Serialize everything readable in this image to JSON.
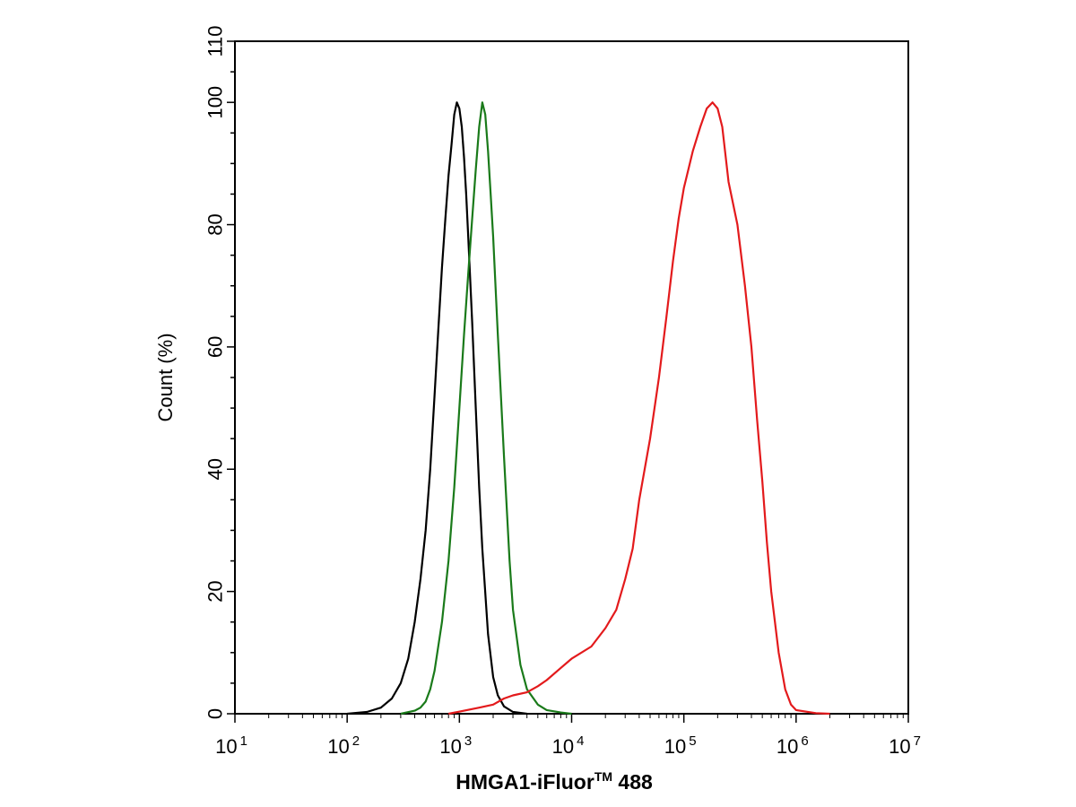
{
  "chart_data": {
    "type": "line",
    "xlabel": "HMGA1-iFluor",
    "xlabel_superscript": "TM",
    "xlabel_suffix": " 488",
    "ylabel": "Count  (%)",
    "x_scale": "log",
    "xlim": [
      10,
      10000000
    ],
    "ylim": [
      0,
      110
    ],
    "x_ticks": [
      {
        "base": "10",
        "exp": "1"
      },
      {
        "base": "10",
        "exp": "2"
      },
      {
        "base": "10",
        "exp": "3"
      },
      {
        "base": "10",
        "exp": "4"
      },
      {
        "base": "10",
        "exp": "5"
      },
      {
        "base": "10",
        "exp": "6"
      },
      {
        "base": "10",
        "exp": "7"
      }
    ],
    "y_ticks": [
      "0",
      "20",
      "40",
      "60",
      "80",
      "100",
      "110"
    ],
    "y_tick_values": [
      0,
      20,
      40,
      60,
      80,
      100,
      110
    ],
    "grid": false,
    "series": [
      {
        "color": "#000000",
        "points": [
          [
            100,
            0
          ],
          [
            150,
            0.3
          ],
          [
            200,
            1
          ],
          [
            250,
            2.5
          ],
          [
            300,
            5
          ],
          [
            350,
            9
          ],
          [
            400,
            15
          ],
          [
            450,
            22
          ],
          [
            500,
            30
          ],
          [
            550,
            40
          ],
          [
            600,
            52
          ],
          [
            650,
            63
          ],
          [
            700,
            73
          ],
          [
            750,
            81
          ],
          [
            800,
            88
          ],
          [
            850,
            93
          ],
          [
            900,
            98
          ],
          [
            950,
            100
          ],
          [
            1000,
            99
          ],
          [
            1050,
            96
          ],
          [
            1100,
            91
          ],
          [
            1150,
            85
          ],
          [
            1200,
            78
          ],
          [
            1300,
            64
          ],
          [
            1400,
            50
          ],
          [
            1500,
            37
          ],
          [
            1600,
            27
          ],
          [
            1800,
            13
          ],
          [
            2000,
            6
          ],
          [
            2200,
            3
          ],
          [
            2500,
            1.2
          ],
          [
            3000,
            0.3
          ],
          [
            4000,
            0
          ]
        ]
      },
      {
        "color": "#1a7a1a",
        "points": [
          [
            300,
            0
          ],
          [
            400,
            0.5
          ],
          [
            450,
            1
          ],
          [
            500,
            2
          ],
          [
            550,
            4
          ],
          [
            600,
            7
          ],
          [
            700,
            15
          ],
          [
            800,
            25
          ],
          [
            900,
            37
          ],
          [
            1000,
            50
          ],
          [
            1100,
            62
          ],
          [
            1200,
            72
          ],
          [
            1300,
            81
          ],
          [
            1400,
            89
          ],
          [
            1500,
            96
          ],
          [
            1600,
            100
          ],
          [
            1700,
            98
          ],
          [
            1800,
            92
          ],
          [
            1900,
            85
          ],
          [
            2000,
            78
          ],
          [
            2200,
            62
          ],
          [
            2500,
            42
          ],
          [
            2800,
            25
          ],
          [
            3000,
            17
          ],
          [
            3500,
            8
          ],
          [
            4000,
            4
          ],
          [
            5000,
            1.5
          ],
          [
            6000,
            0.6
          ],
          [
            8000,
            0.2
          ],
          [
            10000,
            0
          ]
        ]
      },
      {
        "color": "#e31a1c",
        "points": [
          [
            800,
            0
          ],
          [
            1500,
            1
          ],
          [
            2000,
            1.5
          ],
          [
            2500,
            2.5
          ],
          [
            3000,
            3
          ],
          [
            4000,
            3.5
          ],
          [
            5000,
            4.5
          ],
          [
            6000,
            5.5
          ],
          [
            8000,
            7.5
          ],
          [
            10000,
            9
          ],
          [
            15000,
            11
          ],
          [
            20000,
            14
          ],
          [
            25000,
            17
          ],
          [
            30000,
            22
          ],
          [
            35000,
            27
          ],
          [
            40000,
            35
          ],
          [
            50000,
            45
          ],
          [
            60000,
            55
          ],
          [
            70000,
            65
          ],
          [
            80000,
            74
          ],
          [
            90000,
            81
          ],
          [
            100000,
            86
          ],
          [
            120000,
            92
          ],
          [
            140000,
            96
          ],
          [
            160000,
            99
          ],
          [
            180000,
            100
          ],
          [
            200000,
            99
          ],
          [
            220000,
            96
          ],
          [
            250000,
            87
          ],
          [
            300000,
            80
          ],
          [
            350000,
            70
          ],
          [
            400000,
            60
          ],
          [
            450000,
            48
          ],
          [
            500000,
            38
          ],
          [
            550000,
            28
          ],
          [
            600000,
            20
          ],
          [
            700000,
            10
          ],
          [
            800000,
            4
          ],
          [
            900000,
            1.5
          ],
          [
            1000000,
            0.6
          ],
          [
            1500000,
            0.1
          ],
          [
            2000000,
            0
          ]
        ]
      }
    ]
  }
}
